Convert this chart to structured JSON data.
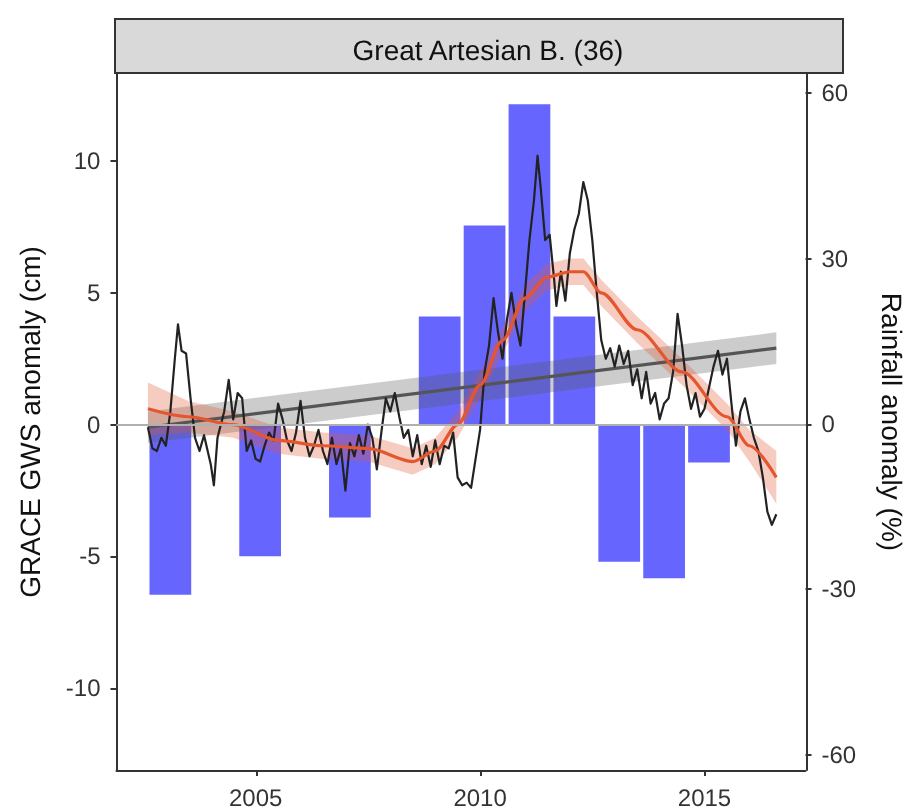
{
  "chart_data": {
    "type": "line",
    "title": "Great Artesian B. (36)",
    "ylabel": "GRACE GWS anomaly (cm)",
    "y2label": "Rainfall anomaly (%)",
    "xlim": [
      2001.9,
      2017.25
    ],
    "xticks": [
      2005,
      2010,
      2015
    ],
    "ylim": [
      -13.1,
      13.3
    ],
    "yticks": [
      -10,
      -5,
      0,
      5,
      10
    ],
    "y2lim": [
      -62.8,
      63.5
    ],
    "y2ticks": [
      -60,
      -30,
      0,
      30,
      60
    ],
    "grid": false,
    "ref_lines": [
      {
        "axis": "y",
        "value": 0,
        "label": null,
        "color": "#b0b0b0"
      }
    ],
    "series": [
      {
        "type": "bar",
        "axis": "y2",
        "color": "#6666ff",
        "x": [
          2003.1,
          2005.1,
          2007.1,
          2009.1,
          2010.1,
          2011.1,
          2012.1,
          2013.1,
          2014.1,
          2015.1
        ],
        "values": [
          -31,
          -24,
          -17,
          19.5,
          36,
          58,
          19.5,
          -25,
          -28,
          -7
        ]
      },
      {
        "color": "#555555",
        "x": [
          2002.6,
          2016.6
        ],
        "values": [
          -0.1,
          2.9
        ],
        "lower": [
          -0.7,
          2.3
        ],
        "upper": [
          0.5,
          3.5
        ]
      },
      {
        "color": "#222222",
        "x": [
          2002.6,
          2002.7,
          2002.8,
          2002.9,
          2003.0,
          2003.1,
          2003.2,
          2003.27,
          2003.35,
          2003.45,
          2003.55,
          2003.65,
          2003.75,
          2003.85,
          2004.0,
          2004.07,
          2004.15,
          2004.3,
          2004.4,
          2004.5,
          2004.6,
          2004.7,
          2004.8,
          2004.9,
          2005.0,
          2005.1,
          2005.2,
          2005.3,
          2005.4,
          2005.5,
          2005.6,
          2005.7,
          2005.8,
          2005.9,
          2006.0,
          2006.1,
          2006.2,
          2006.3,
          2006.4,
          2006.5,
          2006.6,
          2006.7,
          2006.8,
          2006.9,
          2007.0,
          2007.1,
          2007.2,
          2007.3,
          2007.4,
          2007.5,
          2007.6,
          2007.7,
          2007.8,
          2007.9,
          2008.0,
          2008.1,
          2008.2,
          2008.3,
          2008.4,
          2008.5,
          2008.6,
          2008.7,
          2008.8,
          2008.9,
          2009.0,
          2009.1,
          2009.2,
          2009.3,
          2009.4,
          2009.5,
          2009.6,
          2009.7,
          2009.8,
          2009.9,
          2010.0,
          2010.1,
          2010.2,
          2010.3,
          2010.4,
          2010.5,
          2010.6,
          2010.7,
          2010.8,
          2010.9,
          2011.0,
          2011.1,
          2011.2,
          2011.28,
          2011.35,
          2011.45,
          2011.55,
          2011.65,
          2011.7,
          2011.8,
          2011.9,
          2012.0,
          2012.1,
          2012.2,
          2012.3,
          2012.4,
          2012.5,
          2012.6,
          2012.7,
          2012.8,
          2012.9,
          2013.0,
          2013.1,
          2013.2,
          2013.3,
          2013.4,
          2013.5,
          2013.6,
          2013.7,
          2013.8,
          2013.9,
          2014.0,
          2014.1,
          2014.2,
          2014.3,
          2014.4,
          2014.5,
          2014.6,
          2014.7,
          2014.8,
          2014.9,
          2015.0,
          2015.2,
          2015.3,
          2015.4,
          2015.5,
          2015.6,
          2015.7,
          2015.8,
          2015.9,
          2016.0,
          2016.1,
          2016.2,
          2016.3,
          2016.4,
          2016.5,
          2016.6
        ],
        "values": [
          -0.1,
          -0.9,
          -1.0,
          -0.5,
          -0.8,
          0.5,
          2.5,
          3.8,
          2.8,
          2.7,
          1.0,
          -0.5,
          -1.0,
          -0.4,
          -1.5,
          -2.3,
          -0.5,
          0.5,
          1.7,
          0.2,
          1.2,
          1.0,
          -1.0,
          -0.6,
          -1.3,
          -1.4,
          -0.8,
          -0.3,
          -0.6,
          0.8,
          0.2,
          -0.6,
          -1.0,
          -0.3,
          0.9,
          -0.5,
          -1.2,
          -0.8,
          -0.2,
          -1.0,
          -1.5,
          -0.5,
          -1.5,
          -0.9,
          -2.5,
          -0.7,
          -1.2,
          -0.4,
          -1.1,
          0.0,
          -0.5,
          -1.7,
          -0.3,
          1.0,
          0.5,
          1.2,
          0.3,
          -0.5,
          -0.2,
          -1.2,
          -0.4,
          -1.5,
          -0.8,
          -1.6,
          -0.6,
          -1.5,
          -0.8,
          -0.9,
          -0.3,
          -2.0,
          -2.3,
          -2.2,
          -2.4,
          -1.3,
          -0.2,
          2.0,
          3.0,
          4.8,
          3.5,
          2.5,
          4.0,
          5.0,
          3.8,
          3.0,
          5.0,
          7.0,
          8.5,
          10.2,
          9.0,
          7.0,
          7.2,
          5.5,
          4.5,
          5.8,
          4.7,
          6.5,
          7.4,
          8.0,
          9.2,
          8.5,
          7.0,
          5.0,
          3.2,
          2.5,
          2.9,
          2.2,
          3.0,
          2.3,
          2.8,
          1.5,
          2.1,
          1.0,
          2.0,
          0.8,
          1.2,
          0.2,
          0.8,
          1.0,
          2.0,
          4.2,
          3.0,
          1.5,
          0.6,
          1.2,
          0.3,
          0.6,
          2.2,
          2.8,
          1.9,
          2.5,
          0.8,
          -0.8,
          0.5,
          1.0,
          0.2,
          -0.5,
          -1.0,
          -2.0,
          -3.3,
          -3.8,
          -3.4
        ]
      },
      {
        "color": "#e4572e",
        "x": [
          2002.6,
          2003.5,
          2004.5,
          2005.5,
          2006.5,
          2007.5,
          2008.5,
          2009.0,
          2009.5,
          2010.0,
          2010.5,
          2011.0,
          2011.5,
          2012.0,
          2012.3,
          2012.7,
          2013.5,
          2014.5,
          2015.5,
          2016.0,
          2016.6
        ],
        "values": [
          0.6,
          0.3,
          0.0,
          -0.6,
          -0.8,
          -0.9,
          -1.4,
          -1.0,
          0.0,
          1.5,
          3.2,
          4.8,
          5.6,
          5.8,
          5.8,
          5.0,
          3.6,
          2.0,
          0.3,
          -0.8,
          -2.0
        ],
        "lower": [
          -0.4,
          -0.3,
          -0.5,
          -1.1,
          -1.3,
          -1.4,
          -1.9,
          -1.5,
          -0.5,
          1.0,
          2.7,
          4.3,
          5.1,
          5.3,
          5.3,
          4.5,
          3.1,
          1.5,
          -0.2,
          -1.4,
          -3.0
        ],
        "upper": [
          1.6,
          0.9,
          0.5,
          -0.1,
          -0.3,
          -0.4,
          -0.9,
          -0.5,
          0.5,
          2.0,
          3.7,
          5.3,
          6.1,
          6.3,
          6.3,
          5.5,
          4.1,
          2.5,
          0.8,
          -0.2,
          -1.0
        ]
      }
    ]
  }
}
